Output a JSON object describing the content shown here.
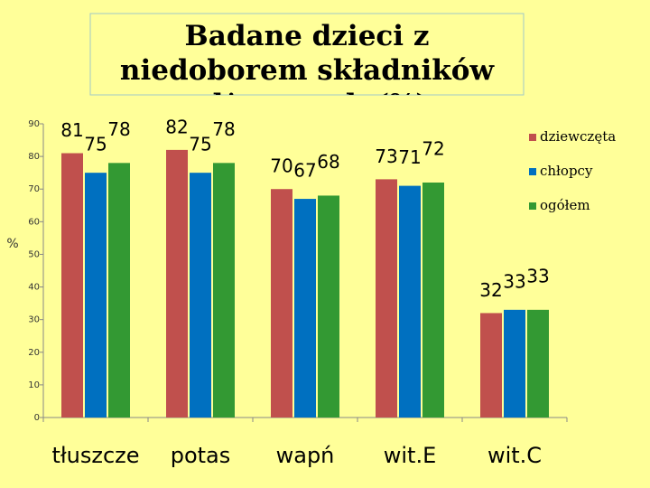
{
  "chart_data": {
    "type": "bar",
    "title": "Badane dzieci z niedoborem składników odżywczych (%)",
    "y_label": "%",
    "categories": [
      "tłuszcze",
      "potas",
      "wapń",
      "wit.E",
      "wit.C"
    ],
    "series": [
      {
        "name": "dziewczęta",
        "color": "#c0504d",
        "values": [
          81,
          82,
          70,
          73,
          32
        ]
      },
      {
        "name": "chłopcy",
        "color": "#0070c0",
        "values": [
          75,
          75,
          67,
          71,
          33
        ]
      },
      {
        "name": "ogółem",
        "color": "#339933",
        "values": [
          78,
          78,
          68,
          72,
          33
        ]
      }
    ],
    "ylim": [
      0,
      90
    ],
    "yticks": [
      0,
      10,
      20,
      30,
      40,
      50,
      60,
      70,
      80,
      90
    ],
    "grid": false,
    "legend": "right"
  }
}
